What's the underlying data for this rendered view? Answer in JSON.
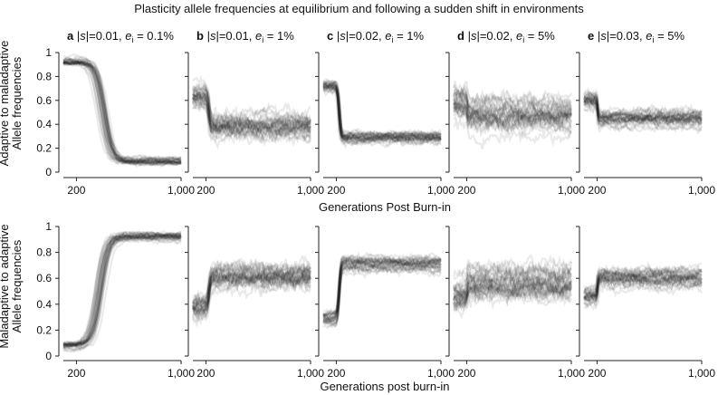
{
  "figure_title": "Plasticity allele frequencies at equilibrium and following a sudden shift in environments",
  "rows": [
    {
      "ylabel_line1": "Adaptive to maladaptive",
      "ylabel_line2": "Allele frequencies",
      "xlabel": "Generations Post Burn-in"
    },
    {
      "ylabel_line1": "Maladaptive to adaptive",
      "ylabel_line2": "Allele frequencies",
      "xlabel": "Generations post burn-in"
    }
  ],
  "panels": [
    {
      "letter": "a",
      "s": "0.01",
      "e": "0.1%"
    },
    {
      "letter": "b",
      "s": "0.01",
      "e": "1%"
    },
    {
      "letter": "c",
      "s": "0.02",
      "e": "1%"
    },
    {
      "letter": "d",
      "s": "0.02",
      "e": "5%"
    },
    {
      "letter": "e",
      "s": "0.03",
      "e": "5%"
    }
  ],
  "panel_label_parts": {
    "s_prefix": "|",
    "s_var": "s",
    "s_suffix": "|=",
    "e_var": "e",
    "e_sub": "i",
    "e_eq": " = "
  },
  "colors": {
    "trajectory": "#1a1a1a",
    "axis": "#222222"
  },
  "chart_data": {
    "type": "line",
    "description_style": "replicate simulation trajectories (many overlaid semi-transparent lines)",
    "xlim": [
      100,
      1000
    ],
    "ylim": [
      0,
      1
    ],
    "xticks": [
      200,
      1000
    ],
    "xtick_labels": [
      "200",
      "1,000"
    ],
    "yticks": [
      0,
      0.2,
      0.4,
      0.6,
      0.8,
      1
    ],
    "ytick_labels": [
      "0",
      "0.2",
      "0.4",
      "0.6",
      "0.8",
      "1"
    ],
    "shift_generation": 200,
    "panels": [
      {
        "row": "adaptive to maladaptive",
        "panel": "a",
        "before": 0.92,
        "after": 0.09,
        "transition": "gradual",
        "spread": 0.015,
        "mid": 0.45
      },
      {
        "row": "adaptive to maladaptive",
        "panel": "b",
        "before": 0.63,
        "after": 0.38,
        "transition": "fast",
        "spread": 0.05,
        "mid": 0.5
      },
      {
        "row": "adaptive to maladaptive",
        "panel": "c",
        "before": 0.72,
        "after": 0.29,
        "transition": "fast",
        "spread": 0.025,
        "mid": 0.5
      },
      {
        "row": "adaptive to maladaptive",
        "panel": "d",
        "before": 0.58,
        "after": 0.48,
        "transition": "abrupt",
        "spread": 0.06,
        "mid": 0.5
      },
      {
        "row": "adaptive to maladaptive",
        "panel": "e",
        "before": 0.6,
        "after": 0.45,
        "transition": "abrupt",
        "spread": 0.035,
        "mid": 0.5
      },
      {
        "row": "maladaptive to adaptive",
        "panel": "a",
        "before": 0.08,
        "after": 0.92,
        "transition": "gradual",
        "spread": 0.015,
        "mid": 0.4
      },
      {
        "row": "maladaptive to adaptive",
        "panel": "b",
        "before": 0.38,
        "after": 0.62,
        "transition": "fast",
        "spread": 0.05,
        "mid": 0.5
      },
      {
        "row": "maladaptive to adaptive",
        "panel": "c",
        "before": 0.29,
        "after": 0.71,
        "transition": "fast",
        "spread": 0.025,
        "mid": 0.5
      },
      {
        "row": "maladaptive to adaptive",
        "panel": "d",
        "before": 0.48,
        "after": 0.57,
        "transition": "abrupt",
        "spread": 0.06,
        "mid": 0.5
      },
      {
        "row": "maladaptive to adaptive",
        "panel": "e",
        "before": 0.46,
        "after": 0.6,
        "transition": "abrupt",
        "spread": 0.035,
        "mid": 0.5
      }
    ]
  }
}
